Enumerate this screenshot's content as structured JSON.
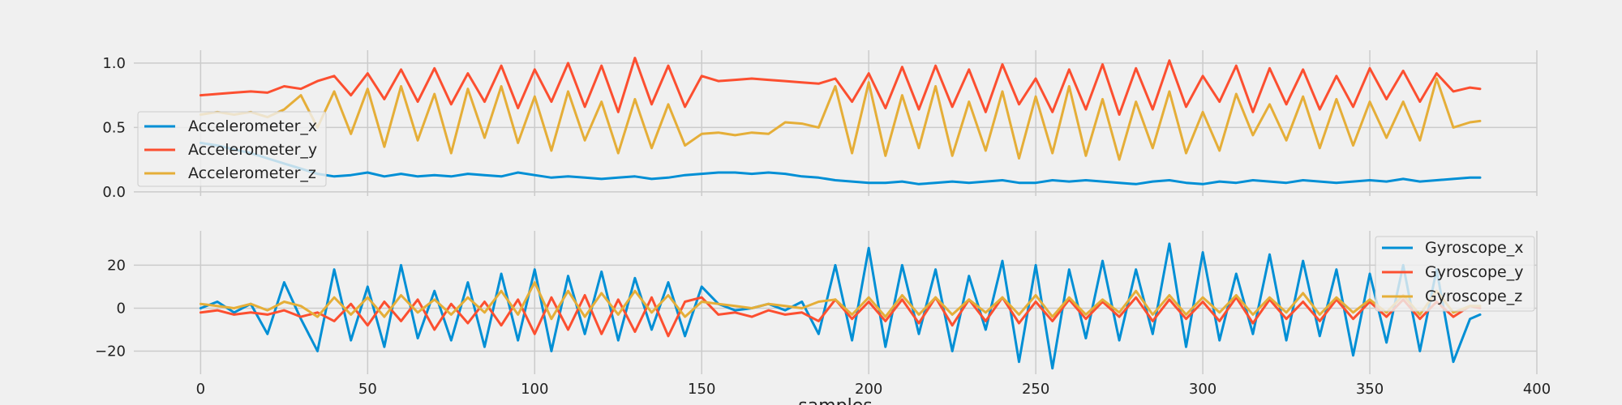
{
  "chart_data": [
    {
      "type": "line",
      "title": "",
      "xlabel": "",
      "ylabel": "",
      "xlim": [
        -20,
        400
      ],
      "ylim": [
        -0.02,
        1.1
      ],
      "yticks": [
        0.0,
        0.5,
        1.0
      ],
      "ytick_labels": [
        "0.0",
        "0.5",
        "1.0"
      ],
      "xticks": [
        0,
        50,
        100,
        150,
        200,
        250,
        300,
        350,
        400
      ],
      "xtick_labels": [],
      "grid": true,
      "legend_position": "center-left",
      "x": [
        0,
        5,
        10,
        15,
        20,
        25,
        30,
        35,
        40,
        45,
        50,
        55,
        60,
        65,
        70,
        75,
        80,
        85,
        90,
        95,
        100,
        105,
        110,
        115,
        120,
        125,
        130,
        135,
        140,
        145,
        150,
        155,
        160,
        165,
        170,
        175,
        180,
        185,
        190,
        195,
        200,
        205,
        210,
        215,
        220,
        225,
        230,
        235,
        240,
        245,
        250,
        255,
        260,
        265,
        270,
        275,
        280,
        285,
        290,
        295,
        300,
        305,
        310,
        315,
        320,
        325,
        330,
        335,
        340,
        345,
        350,
        355,
        360,
        365,
        370,
        375,
        380,
        383
      ],
      "series": [
        {
          "name": "Accelerometer_x",
          "color": "#008fd5",
          "values": [
            0.38,
            0.36,
            0.33,
            0.3,
            0.26,
            0.22,
            0.18,
            0.14,
            0.12,
            0.13,
            0.15,
            0.12,
            0.14,
            0.12,
            0.13,
            0.12,
            0.14,
            0.13,
            0.12,
            0.15,
            0.13,
            0.11,
            0.12,
            0.11,
            0.1,
            0.11,
            0.12,
            0.1,
            0.11,
            0.13,
            0.14,
            0.15,
            0.15,
            0.14,
            0.15,
            0.14,
            0.12,
            0.11,
            0.09,
            0.08,
            0.07,
            0.07,
            0.08,
            0.06,
            0.07,
            0.08,
            0.07,
            0.08,
            0.09,
            0.07,
            0.07,
            0.09,
            0.08,
            0.09,
            0.08,
            0.07,
            0.06,
            0.08,
            0.09,
            0.07,
            0.06,
            0.08,
            0.07,
            0.09,
            0.08,
            0.07,
            0.09,
            0.08,
            0.07,
            0.08,
            0.09,
            0.08,
            0.1,
            0.08,
            0.09,
            0.1,
            0.11,
            0.11
          ]
        },
        {
          "name": "Accelerometer_y",
          "color": "#fc4f30",
          "values": [
            0.75,
            0.76,
            0.77,
            0.78,
            0.77,
            0.82,
            0.8,
            0.86,
            0.9,
            0.75,
            0.92,
            0.72,
            0.95,
            0.7,
            0.96,
            0.68,
            0.92,
            0.7,
            0.98,
            0.65,
            0.95,
            0.7,
            1.0,
            0.66,
            0.98,
            0.62,
            1.04,
            0.68,
            0.98,
            0.66,
            0.9,
            0.86,
            0.87,
            0.88,
            0.87,
            0.86,
            0.85,
            0.84,
            0.88,
            0.7,
            0.92,
            0.65,
            0.97,
            0.64,
            0.98,
            0.66,
            0.95,
            0.62,
            0.99,
            0.68,
            0.88,
            0.62,
            0.95,
            0.64,
            0.99,
            0.6,
            0.96,
            0.64,
            1.02,
            0.66,
            0.9,
            0.7,
            0.98,
            0.62,
            0.96,
            0.68,
            0.95,
            0.64,
            0.9,
            0.66,
            0.96,
            0.72,
            0.94,
            0.7,
            0.92,
            0.78,
            0.81,
            0.8
          ]
        },
        {
          "name": "Accelerometer_z",
          "color": "#e5ae38",
          "values": [
            0.6,
            0.62,
            0.6,
            0.62,
            0.58,
            0.64,
            0.75,
            0.5,
            0.78,
            0.45,
            0.8,
            0.35,
            0.82,
            0.4,
            0.76,
            0.3,
            0.8,
            0.42,
            0.82,
            0.38,
            0.74,
            0.32,
            0.78,
            0.4,
            0.7,
            0.3,
            0.72,
            0.34,
            0.68,
            0.36,
            0.45,
            0.46,
            0.44,
            0.46,
            0.45,
            0.54,
            0.53,
            0.5,
            0.82,
            0.3,
            0.85,
            0.28,
            0.75,
            0.34,
            0.82,
            0.28,
            0.7,
            0.32,
            0.78,
            0.26,
            0.74,
            0.3,
            0.82,
            0.28,
            0.72,
            0.25,
            0.7,
            0.34,
            0.78,
            0.3,
            0.62,
            0.32,
            0.76,
            0.44,
            0.68,
            0.4,
            0.74,
            0.34,
            0.72,
            0.36,
            0.7,
            0.42,
            0.7,
            0.4,
            0.88,
            0.5,
            0.54,
            0.55
          ]
        }
      ]
    },
    {
      "type": "line",
      "title": "",
      "xlabel": "samples",
      "ylabel": "",
      "xlim": [
        -20,
        400
      ],
      "ylim": [
        -30,
        36
      ],
      "yticks": [
        -20,
        0,
        20
      ],
      "ytick_labels": [
        "−20",
        "0",
        "20"
      ],
      "xticks": [
        0,
        50,
        100,
        150,
        200,
        250,
        300,
        350,
        400
      ],
      "xtick_labels": [
        "0",
        "50",
        "100",
        "150",
        "200",
        "250",
        "300",
        "350",
        "400"
      ],
      "grid": true,
      "legend_position": "upper-right",
      "x": [
        0,
        5,
        10,
        15,
        20,
        25,
        30,
        35,
        40,
        45,
        50,
        55,
        60,
        65,
        70,
        75,
        80,
        85,
        90,
        95,
        100,
        105,
        110,
        115,
        120,
        125,
        130,
        135,
        140,
        145,
        150,
        155,
        160,
        165,
        170,
        175,
        180,
        185,
        190,
        195,
        200,
        205,
        210,
        215,
        220,
        225,
        230,
        235,
        240,
        245,
        250,
        255,
        260,
        265,
        270,
        275,
        280,
        285,
        290,
        295,
        300,
        305,
        310,
        315,
        320,
        325,
        330,
        335,
        340,
        345,
        350,
        355,
        360,
        365,
        370,
        375,
        380,
        383
      ],
      "series": [
        {
          "name": "Gyroscope_x",
          "color": "#008fd5",
          "values": [
            0,
            3,
            -2,
            2,
            -12,
            12,
            -5,
            -20,
            18,
            -15,
            10,
            -18,
            20,
            -14,
            8,
            -15,
            12,
            -18,
            16,
            -15,
            18,
            -20,
            15,
            -12,
            17,
            -15,
            14,
            -10,
            12,
            -13,
            10,
            2,
            -1,
            0,
            2,
            -1,
            3,
            -12,
            20,
            -15,
            28,
            -18,
            20,
            -12,
            18,
            -20,
            15,
            -10,
            22,
            -25,
            20,
            -28,
            18,
            -14,
            22,
            -15,
            18,
            -12,
            30,
            -18,
            26,
            -15,
            16,
            -12,
            25,
            -15,
            22,
            -13,
            18,
            -22,
            16,
            -16,
            20,
            -20,
            18,
            -25,
            -5,
            -3
          ]
        },
        {
          "name": "Gyroscope_y",
          "color": "#fc4f30",
          "values": [
            -2,
            -1,
            -3,
            -2,
            -3,
            -1,
            -4,
            -2,
            -6,
            2,
            -8,
            3,
            -6,
            4,
            -10,
            2,
            -7,
            3,
            -8,
            4,
            -12,
            5,
            -10,
            6,
            -12,
            4,
            -11,
            5,
            -13,
            3,
            5,
            -3,
            -2,
            -4,
            -1,
            -3,
            -2,
            -6,
            4,
            -5,
            3,
            -6,
            4,
            -7,
            5,
            -8,
            4,
            -6,
            5,
            -7,
            3,
            -6,
            4,
            -5,
            3,
            -4,
            5,
            -6,
            4,
            -5,
            3,
            -6,
            5,
            -7,
            4,
            -5,
            3,
            -6,
            4,
            -5,
            3,
            -4,
            4,
            -5,
            3,
            -4,
            1,
            0
          ]
        },
        {
          "name": "Gyroscope_z",
          "color": "#e5ae38",
          "values": [
            2,
            1,
            0,
            2,
            -1,
            3,
            1,
            -4,
            5,
            -3,
            5,
            -4,
            6,
            -2,
            4,
            -3,
            5,
            -2,
            8,
            -3,
            12,
            -5,
            8,
            -4,
            7,
            -3,
            8,
            -2,
            6,
            -4,
            3,
            2,
            1,
            0,
            2,
            1,
            0,
            3,
            4,
            -3,
            5,
            -4,
            6,
            -3,
            5,
            -3,
            4,
            -2,
            5,
            -3,
            6,
            -4,
            5,
            -3,
            4,
            -2,
            8,
            -3,
            6,
            -3,
            5,
            -2,
            6,
            -3,
            5,
            -2,
            7,
            -3,
            5,
            -2,
            4,
            -2,
            6,
            -3,
            8,
            -2,
            1,
            1
          ]
        }
      ]
    }
  ]
}
